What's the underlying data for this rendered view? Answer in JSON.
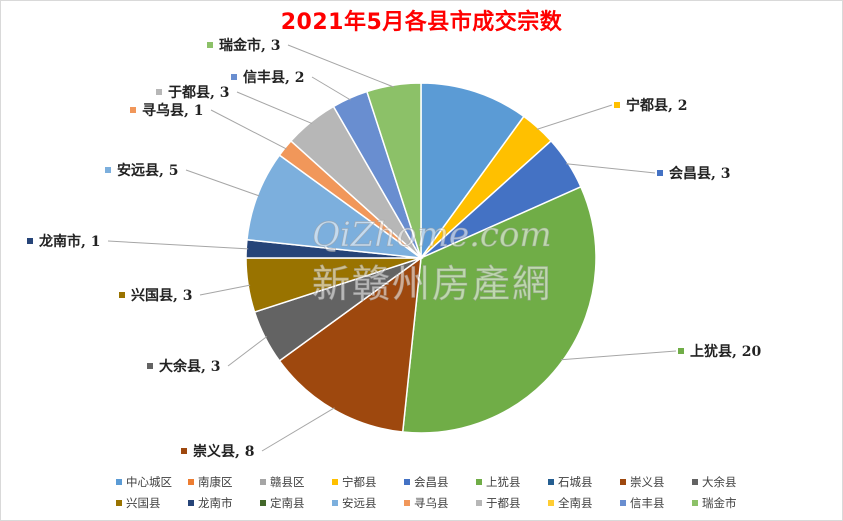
{
  "chart_data": {
    "type": "pie",
    "title": "2021年5月各县市成交宗数",
    "label_format": "{name}, {value}",
    "slices": [
      {
        "name": "中心城区",
        "value": 6,
        "color": "#5B9BD5",
        "show_label": false
      },
      {
        "name": "南康区",
        "value": 0,
        "color": "#ED7D31",
        "show_label": false
      },
      {
        "name": "赣县区",
        "value": 0,
        "color": "#A5A5A5",
        "show_label": false
      },
      {
        "name": "宁都县",
        "value": 2,
        "color": "#FFC000",
        "show_label": true
      },
      {
        "name": "会昌县",
        "value": 3,
        "color": "#4472C4",
        "show_label": true
      },
      {
        "name": "上犹县",
        "value": 20,
        "color": "#70AD47",
        "show_label": true
      },
      {
        "name": "石城县",
        "value": 0,
        "color": "#255E91",
        "show_label": false
      },
      {
        "name": "崇义县",
        "value": 8,
        "color": "#9E480E",
        "show_label": true
      },
      {
        "name": "大余县",
        "value": 3,
        "color": "#636363",
        "show_label": true
      },
      {
        "name": "兴国县",
        "value": 3,
        "color": "#997300",
        "show_label": true
      },
      {
        "name": "龙南市",
        "value": 1,
        "color": "#264478",
        "show_label": true
      },
      {
        "name": "定南县",
        "value": 0,
        "color": "#43682B",
        "show_label": false
      },
      {
        "name": "安远县",
        "value": 5,
        "color": "#7CAFDD",
        "show_label": true
      },
      {
        "name": "寻乌县",
        "value": 1,
        "color": "#F1975A",
        "show_label": true
      },
      {
        "name": "于都县",
        "value": 3,
        "color": "#B7B7B7",
        "show_label": true
      },
      {
        "name": "全南县",
        "value": 0,
        "color": "#FFCD33",
        "show_label": false
      },
      {
        "name": "信丰县",
        "value": 2,
        "color": "#698ED0",
        "show_label": true
      },
      {
        "name": "瑞金市",
        "value": 3,
        "color": "#8CC168",
        "show_label": true
      }
    ],
    "legend_position": "bottom"
  },
  "watermark": {
    "line1": "QiZhome.com",
    "line2": "新赣州房產網"
  }
}
